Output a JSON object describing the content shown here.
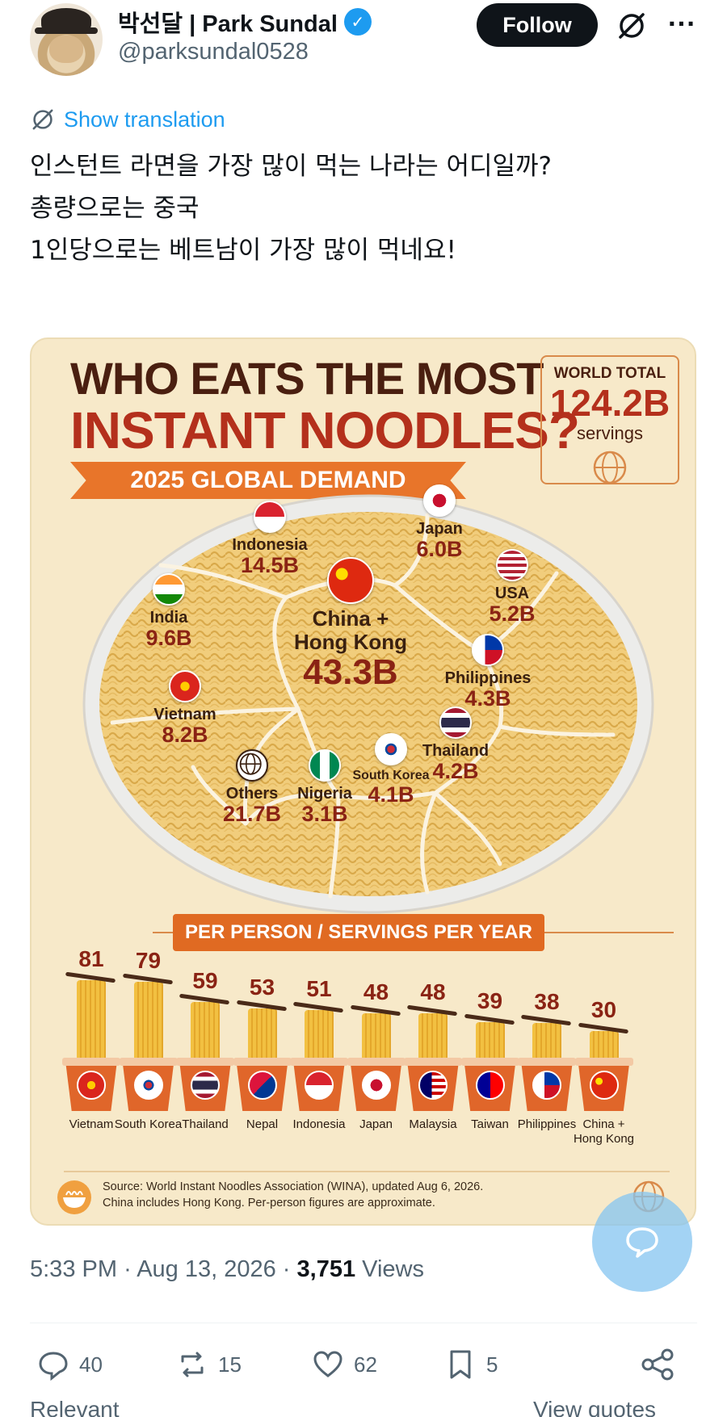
{
  "author": {
    "name": "박선달 | Park Sundal",
    "handle": "@parksundal0528",
    "follow_label": "Follow"
  },
  "translate_label": "Show translation",
  "tweet_lines": [
    "인스턴트 라면을 가장 많이 먹는 나라는 어디일까?",
    "",
    "총량으로는 중국",
    "1인당으로는 베트남이 가장 많이 먹네요!"
  ],
  "infographic": {
    "title_line1": "WHO EATS THE MOST",
    "title_line2": "INSTANT NOODLES?",
    "subtitle": "2025 GLOBAL DEMAND",
    "world_total": {
      "label": "WORLD TOTAL",
      "value": "124.2B",
      "unit": "servings"
    },
    "regions": [
      {
        "name": "Indonesia",
        "value": "14.5B",
        "flag": "indonesia"
      },
      {
        "name": "Japan",
        "value": "6.0B",
        "flag": "japan"
      },
      {
        "name": "USA",
        "value": "5.2B",
        "flag": "usa"
      },
      {
        "name": "India",
        "value": "9.6B",
        "flag": "india"
      },
      {
        "name": "China +\nHong Kong",
        "value": "43.3B",
        "flag": "china"
      },
      {
        "name": "Philippines",
        "value": "4.3B",
        "flag": "philippines"
      },
      {
        "name": "Vietnam",
        "value": "8.2B",
        "flag": "vietnam"
      },
      {
        "name": "Thailand",
        "value": "4.2B",
        "flag": "thailand"
      },
      {
        "name": "Others",
        "value": "21.7B",
        "flag": "globe"
      },
      {
        "name": "Nigeria",
        "value": "3.1B",
        "flag": "nigeria"
      },
      {
        "name": "South Korea",
        "value": "4.1B",
        "flag": "korea"
      }
    ],
    "per_person_title": "PER PERSON / SERVINGS PER YEAR",
    "source_line1": "Source: World Instant Noodles Association (WINA), updated Aug 6, 2026.",
    "source_line2": "China includes Hong Kong. Per-person figures are approximate."
  },
  "chart_data": {
    "type": "bar",
    "title": "PER PERSON / SERVINGS PER YEAR",
    "categories": [
      "Vietnam",
      "South Korea",
      "Thailand",
      "Nepal",
      "Indonesia",
      "Japan",
      "Malaysia",
      "Taiwan",
      "Philippines",
      "China +\nHong Kong"
    ],
    "values": [
      81,
      79,
      59,
      53,
      51,
      48,
      48,
      39,
      38,
      30
    ],
    "flags": [
      "vietnam",
      "korea",
      "thailand",
      "nepal",
      "indonesia",
      "japan",
      "malaysia",
      "taiwan",
      "philippines",
      "china"
    ],
    "ylim": [
      0,
      81
    ]
  },
  "meta": {
    "time": "5:33 PM",
    "date": "Aug 13, 2026",
    "views_count": "3,751",
    "views_label": "Views"
  },
  "actions": {
    "replies": "40",
    "reposts": "15",
    "likes": "62",
    "bookmarks": "5"
  },
  "bottom_tabs": {
    "left": "Relevant",
    "right": "View quotes"
  },
  "colors": {
    "accent": "#1d9bf0",
    "text": "#0f1419",
    "muted": "#536471",
    "poster_bg": "#f7e9c9",
    "poster_red": "#b4301c"
  }
}
